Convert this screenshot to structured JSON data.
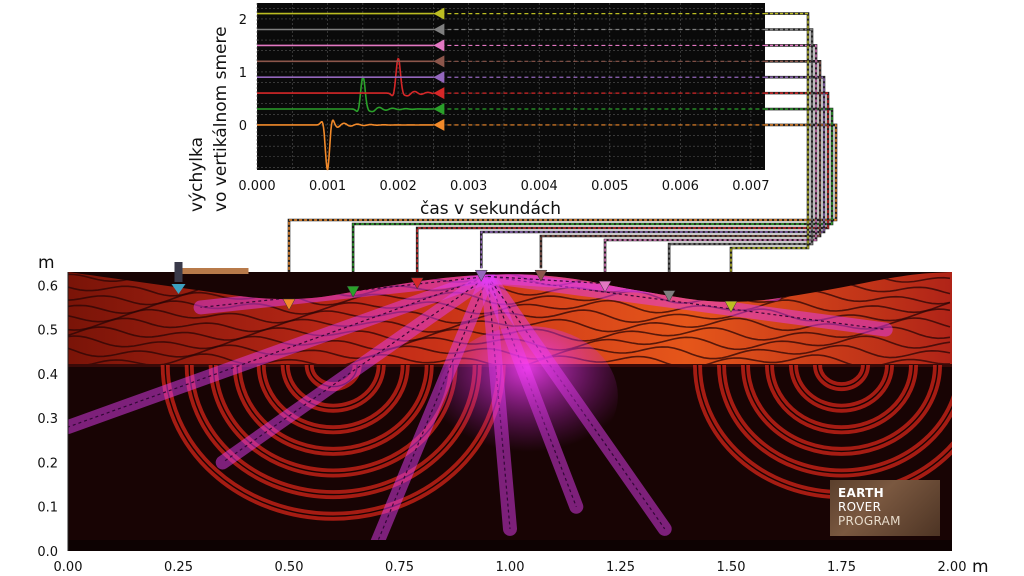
{
  "chart_data": [
    {
      "type": "line",
      "xlabel": "čas v sekundách",
      "ylabel_line1": "výchylka",
      "ylabel_line2": "vo vertikálnom smere",
      "xlim": [
        0,
        0.0072
      ],
      "ylim": [
        -0.85,
        2.3
      ],
      "x_ticks": [
        "0.000",
        "0.001",
        "0.002",
        "0.003",
        "0.004",
        "0.005",
        "0.006",
        "0.007"
      ],
      "y_ticks": [
        "0",
        "1",
        "2"
      ],
      "grid": true,
      "series": [
        {
          "color": "#f28a2a",
          "offset": 0.0,
          "arrival_time": 0.001,
          "peak": -0.85
        },
        {
          "color": "#2aa02a",
          "offset": 0.3,
          "arrival_time": 0.0015,
          "peak": 0.9
        },
        {
          "color": "#d62728",
          "offset": 0.6,
          "arrival_time": 0.002,
          "peak": 1.25
        },
        {
          "color": "#9467bd",
          "offset": 0.9,
          "arrival_time": 0.0025,
          "peak": 0.08
        },
        {
          "color": "#8c564b",
          "offset": 1.2,
          "arrival_time": 0.003,
          "peak": 0.0
        },
        {
          "color": "#e377c2",
          "offset": 1.5,
          "arrival_time": 0.0035,
          "peak": 0.0
        },
        {
          "color": "#7f7f7f",
          "offset": 1.8,
          "arrival_time": 0.004,
          "peak": 0.0
        },
        {
          "color": "#bcbd22",
          "offset": 2.1,
          "arrival_time": 0.0045,
          "peak": 0.0
        }
      ]
    },
    {
      "type": "heatmap",
      "xlabel": "m",
      "ylabel": "m",
      "xlim": [
        0,
        2.0
      ],
      "ylim": [
        0,
        0.63
      ],
      "x_ticks": [
        "0.00",
        "0.25",
        "0.50",
        "0.75",
        "1.00",
        "1.25",
        "1.50",
        "1.75",
        "2.00"
      ],
      "y_ticks": [
        "0.0",
        "0.1",
        "0.2",
        "0.3",
        "0.4",
        "0.5",
        "0.6"
      ],
      "layer_boundary_m": 0.42,
      "surface_profile": [
        [
          0.0,
          0.63
        ],
        [
          0.25,
          0.595
        ],
        [
          0.5,
          0.56
        ],
        [
          0.7,
          0.595
        ],
        [
          0.9,
          0.625
        ],
        [
          1.1,
          0.625
        ],
        [
          1.3,
          0.585
        ],
        [
          1.5,
          0.555
        ],
        [
          1.7,
          0.585
        ],
        [
          1.9,
          0.625
        ],
        [
          2.0,
          0.63
        ]
      ],
      "hammer_source_x_m": 0.25,
      "receivers": [
        {
          "x_m": 0.5,
          "color": "#f28a2a"
        },
        {
          "x_m": 0.645,
          "color": "#2aa02a"
        },
        {
          "x_m": 0.79,
          "color": "#d62728"
        },
        {
          "x_m": 0.935,
          "color": "#9467bd"
        },
        {
          "x_m": 1.07,
          "color": "#8c564b"
        },
        {
          "x_m": 1.215,
          "color": "#e377c2"
        },
        {
          "x_m": 1.36,
          "color": "#7f7f7f"
        },
        {
          "x_m": 1.5,
          "color": "#bcbd22"
        }
      ]
    }
  ],
  "logo": {
    "line1": "EARTH",
    "line2": "ROVER",
    "line3": "PROGRAM"
  }
}
